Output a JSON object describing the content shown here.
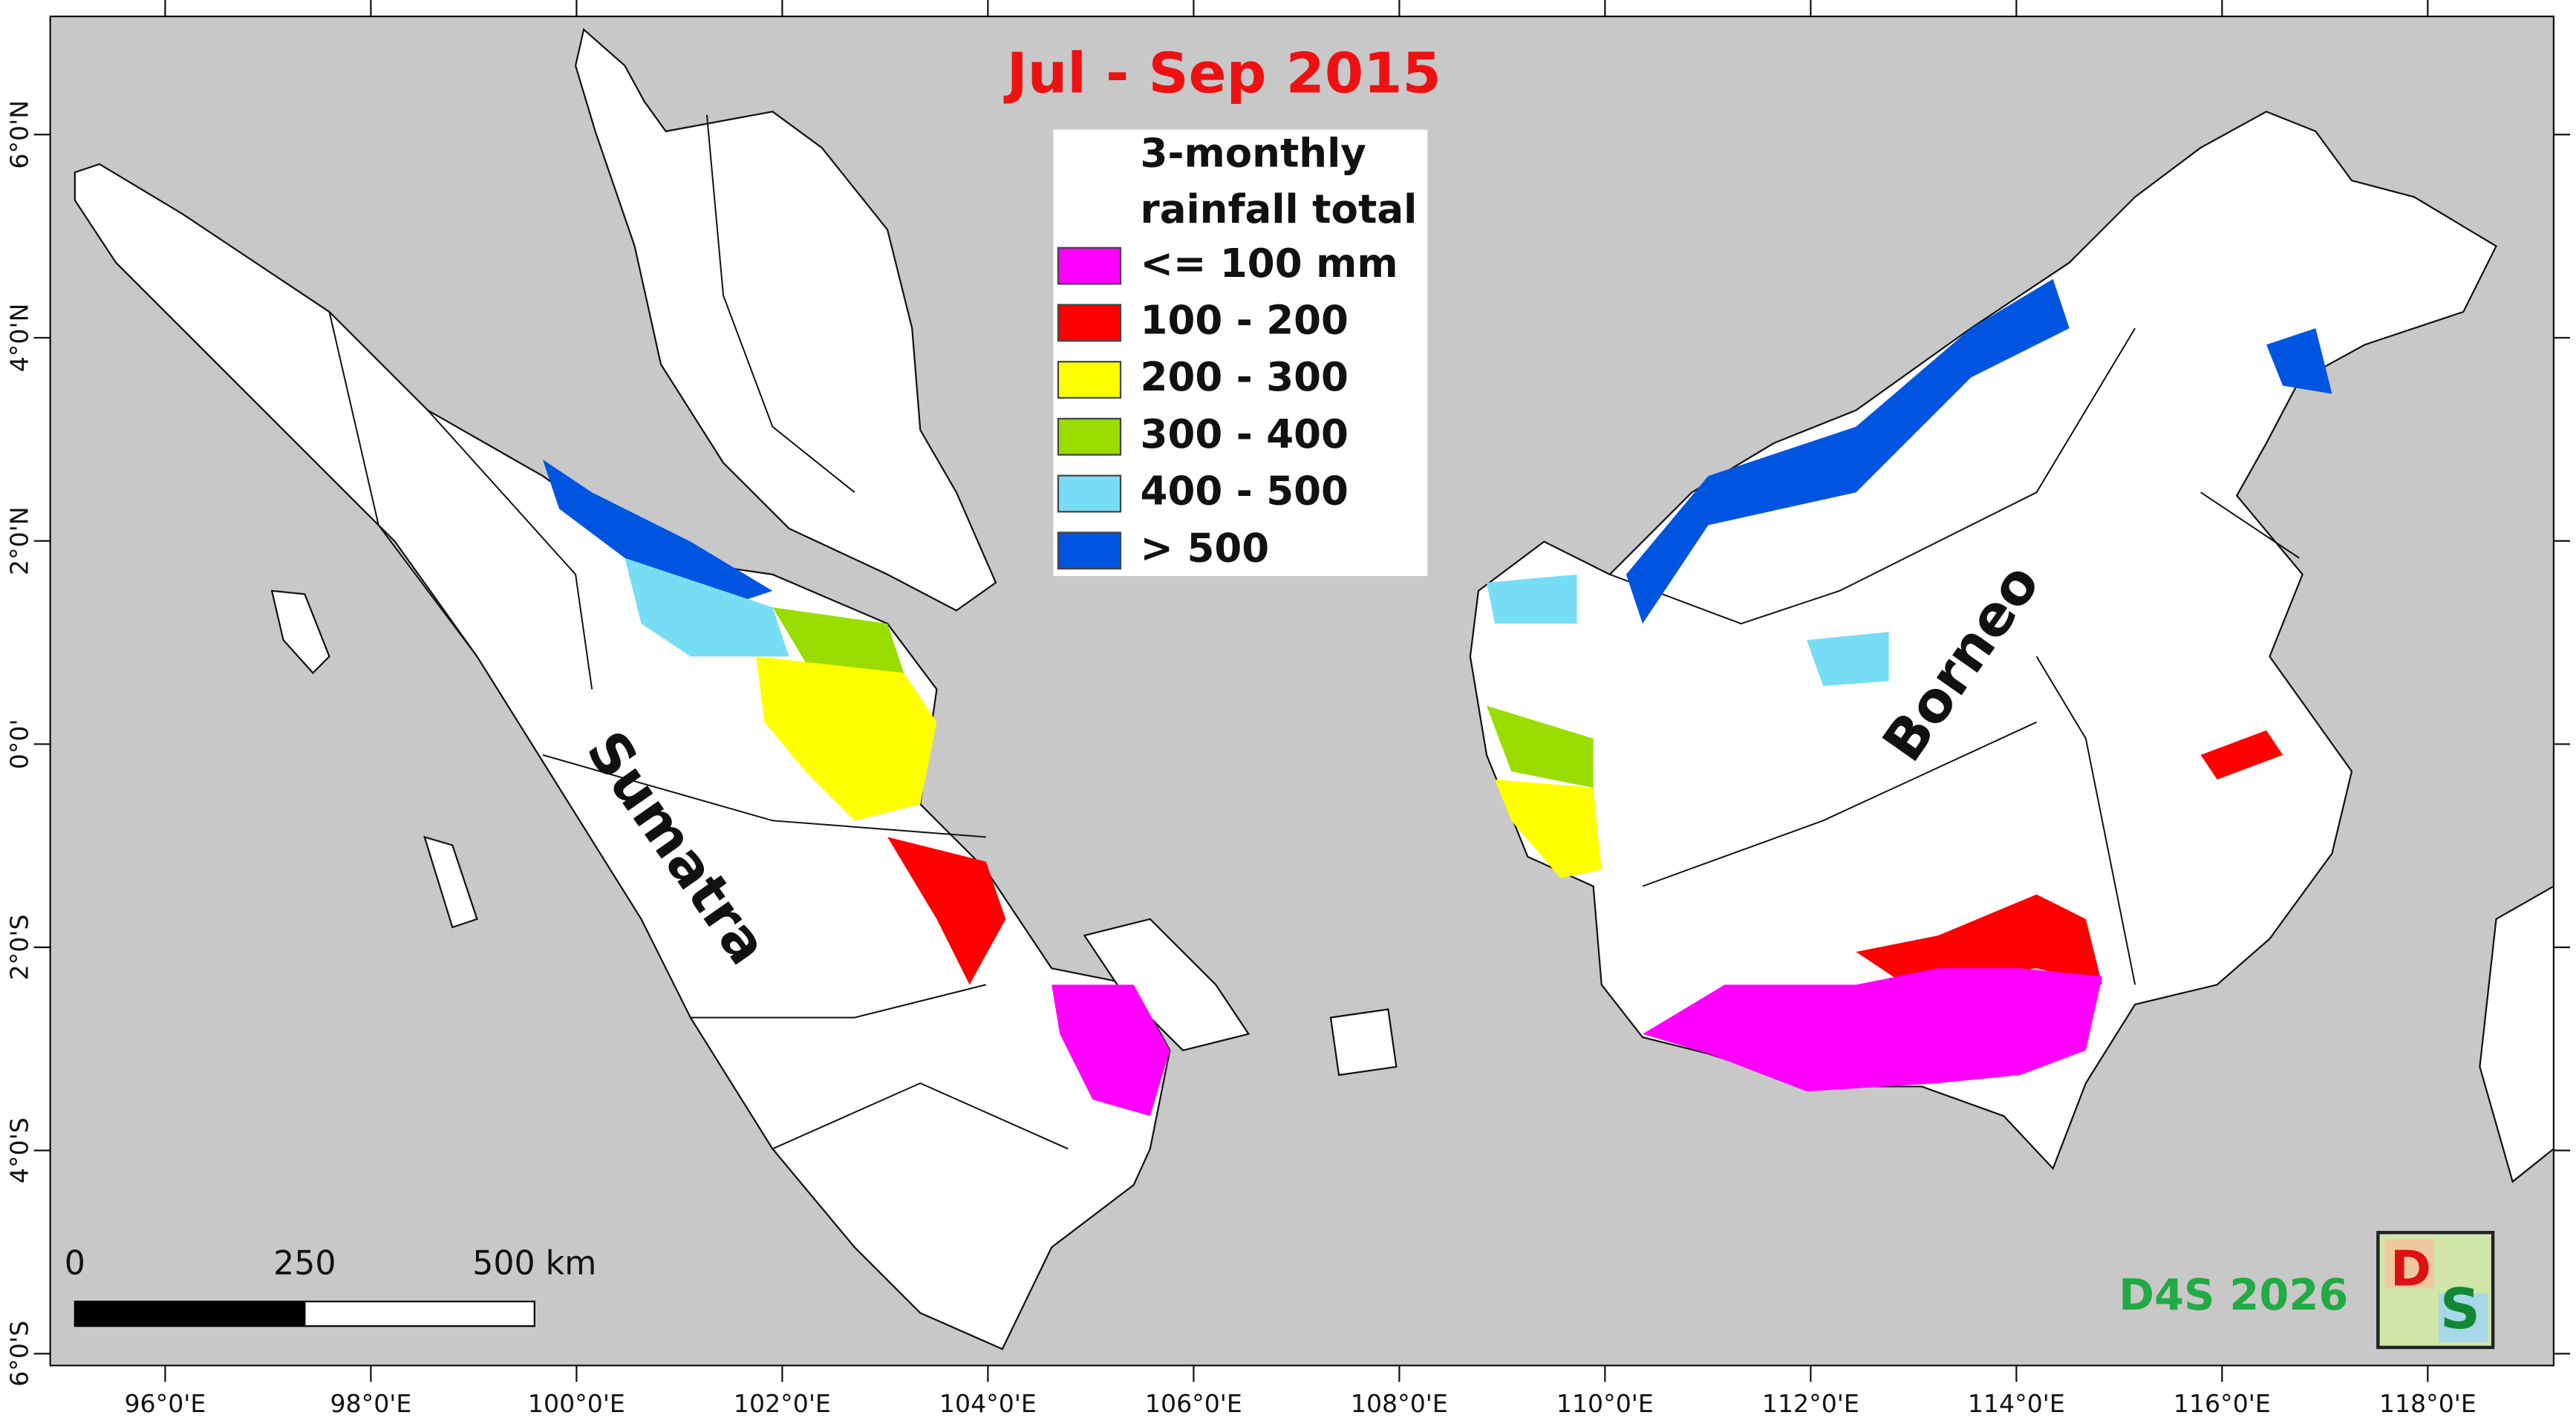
{
  "title": "Jul - Sep 2015",
  "legend": {
    "title_lines": [
      "3-monthly",
      "rainfall total"
    ],
    "items": [
      {
        "label": "<= 100 mm",
        "color": "#ff00ff"
      },
      {
        "label": "100 - 200",
        "color": "#ff0000"
      },
      {
        "label": "200 - 300",
        "color": "#ffff00"
      },
      {
        "label": "300 - 400",
        "color": "#99dd00"
      },
      {
        "label": "400 - 500",
        "color": "#77ddf5"
      },
      {
        "label": "> 500",
        "color": "#0055e0"
      }
    ]
  },
  "island_labels": {
    "sumatra": "Sumatra",
    "borneo": "Borneo"
  },
  "x_axis_labels": [
    "96°0'E",
    "98°0'E",
    "100°0'E",
    "102°0'E",
    "104°0'E",
    "106°0'E",
    "108°0'E",
    "110°0'E",
    "112°0'E",
    "114°0'E",
    "116°0'E",
    "118°0'E"
  ],
  "y_axis_labels": [
    "6°0'N",
    "4°0'N",
    "2°0'N",
    "0°0'",
    "2°0'S",
    "4°0'S",
    "6°0'S"
  ],
  "scale_bar": {
    "labels": [
      "0",
      "250",
      "500 km"
    ]
  },
  "credit": "D4S 2026",
  "logo": {
    "letters": [
      "D",
      "S"
    ]
  }
}
